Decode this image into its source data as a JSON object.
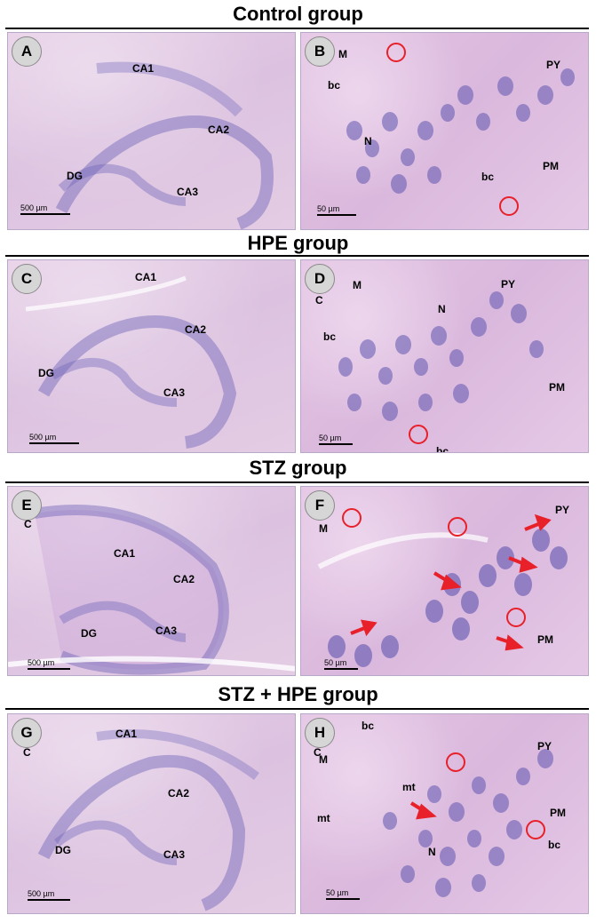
{
  "groups": [
    {
      "title": "Control group",
      "low": {
        "letter": "A",
        "labels": {
          "ca1": "CA1",
          "ca2": "CA2",
          "ca3": "CA3",
          "dg": "DG"
        },
        "scale": "500 µm"
      },
      "high": {
        "letter": "B",
        "labels": {
          "m": "M",
          "bc1": "bc",
          "n": "N",
          "bc2": "bc",
          "py": "PY",
          "pm": "PM"
        },
        "scale": "50 µm"
      }
    },
    {
      "title": "HPE group",
      "low": {
        "letter": "C",
        "labels": {
          "ca1": "CA1",
          "ca2": "CA2",
          "ca3": "CA3",
          "dg": "DG"
        },
        "scale": "500 µm"
      },
      "high": {
        "letter": "D",
        "labels": {
          "c": "C",
          "m": "M",
          "bc1": "bc",
          "n": "N",
          "py": "PY",
          "pm": "PM",
          "bc2": "bc"
        },
        "scale": "50 µm"
      }
    },
    {
      "title": "STZ group",
      "low": {
        "letter": "E",
        "labels": {
          "c": "C",
          "ca1": "CA1",
          "ca2": "CA2",
          "ca3": "CA3",
          "dg": "DG"
        },
        "scale": "500 µm"
      },
      "high": {
        "letter": "F",
        "labels": {
          "m": "M",
          "py": "PY",
          "pm": "PM"
        },
        "scale": "50 µm"
      }
    },
    {
      "title": "STZ + HPE group",
      "low": {
        "letter": "G",
        "labels": {
          "c": "C",
          "ca1": "CA1",
          "ca2": "CA2",
          "ca3": "CA3",
          "dg": "DG"
        },
        "scale": "500 µm"
      },
      "high": {
        "letter": "H",
        "labels": {
          "bc1": "bc",
          "c": "C",
          "m": "M",
          "mt1": "mt",
          "mt2": "mt",
          "n": "N",
          "py": "PY",
          "pm": "PM",
          "bc2": "bc"
        },
        "scale": "50 µm"
      }
    }
  ],
  "colors": {
    "annotation_circle": "#e8202a",
    "arrow": "#e8202a",
    "tissue": "#e2c6e3",
    "nuclei": "#6b5fb0"
  }
}
